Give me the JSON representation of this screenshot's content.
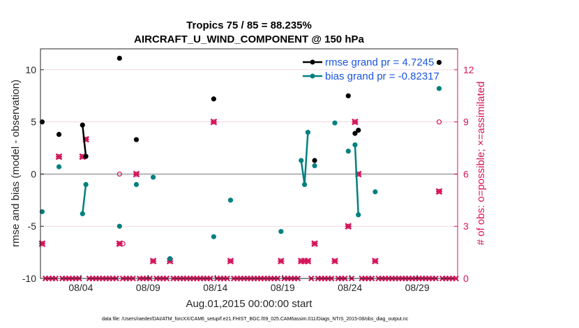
{
  "chart_data": {
    "type": "line",
    "title_line1": "Tropics 75 / 85 = 88.235%",
    "title_line2": "AIRCRAFT_U_WIND_COMPONENT @ 150 hPa",
    "xlabel": "Aug.01,2015 00:00:00 start",
    "ylabel": "rmse and bias (model - observation)",
    "y2label": "# of obs: o=possible; ×=assimilated",
    "xlim": [
      1,
      32
    ],
    "ylim": [
      -10,
      12
    ],
    "y2lim": [
      0,
      13.2
    ],
    "xticks": [
      4,
      9,
      14,
      19,
      24,
      29
    ],
    "xtick_labels": [
      "08/04",
      "08/09",
      "08/14",
      "08/19",
      "08/24",
      "08/29"
    ],
    "yticks": [
      -10,
      -5,
      0,
      5,
      10
    ],
    "ytick_labels": [
      "-10",
      "-5",
      "0",
      "5",
      "10"
    ],
    "y2ticks": [
      0,
      3,
      6,
      9,
      12
    ],
    "y2tick_labels": [
      "0",
      "3",
      "6",
      "9",
      "12"
    ],
    "reference_line": 0,
    "series": [
      {
        "name": "rmse grand pr = 4.7245",
        "color": "#000000",
        "axis": "left",
        "points": [
          [
            1.125,
            5.0
          ],
          [
            2.375,
            3.8
          ],
          [
            4.125,
            4.7
          ],
          [
            4.375,
            1.7
          ],
          [
            6.875,
            11.1
          ],
          [
            8.125,
            3.3
          ],
          [
            13.875,
            7.2
          ],
          [
            21.375,
            1.3
          ],
          [
            23.875,
            7.5
          ],
          [
            24.375,
            3.9
          ],
          [
            24.625,
            4.2
          ],
          [
            30.625,
            10.7
          ]
        ],
        "connected": [
          [
            2,
            3
          ],
          [
            9,
            10
          ]
        ]
      },
      {
        "name": "bias grand pr = -0.82317",
        "color": "#008080",
        "axis": "left",
        "points": [
          [
            1.125,
            -3.6
          ],
          [
            2.375,
            0.7
          ],
          [
            4.125,
            -3.8
          ],
          [
            4.375,
            -1.0
          ],
          [
            6.875,
            -5.0
          ],
          [
            8.125,
            -1.0
          ],
          [
            9.375,
            -0.3
          ],
          [
            10.625,
            -8.1
          ],
          [
            13.875,
            -6.0
          ],
          [
            15.125,
            -2.5
          ],
          [
            18.875,
            -5.5
          ],
          [
            20.375,
            1.3
          ],
          [
            20.625,
            -1.0
          ],
          [
            20.875,
            4.0
          ],
          [
            21.375,
            0.8
          ],
          [
            22.875,
            4.9
          ],
          [
            23.875,
            2.2
          ],
          [
            24.375,
            2.8
          ],
          [
            24.625,
            -3.9
          ],
          [
            25.875,
            -1.7
          ],
          [
            30.625,
            8.2
          ]
        ],
        "connected": [
          [
            2,
            3
          ],
          [
            11,
            12
          ],
          [
            12,
            13
          ],
          [
            17,
            18
          ]
        ]
      }
    ],
    "obs_possible": [
      [
        1.125,
        2
      ],
      [
        2.375,
        7
      ],
      [
        4.125,
        7
      ],
      [
        4.375,
        8
      ],
      [
        6.875,
        2
      ],
      [
        7.125,
        2
      ],
      [
        6.875,
        6
      ],
      [
        8.125,
        6
      ],
      [
        9.375,
        1
      ],
      [
        10.625,
        1
      ],
      [
        13.875,
        9
      ],
      [
        15.125,
        1
      ],
      [
        18.875,
        1
      ],
      [
        20.375,
        1
      ],
      [
        20.625,
        1
      ],
      [
        20.875,
        1
      ],
      [
        21.375,
        2
      ],
      [
        22.875,
        1
      ],
      [
        23.875,
        3
      ],
      [
        24.375,
        9
      ],
      [
        24.625,
        6
      ],
      [
        25.875,
        1
      ],
      [
        30.625,
        9
      ],
      [
        30.625,
        5
      ]
    ],
    "obs_assimilated": [
      [
        1.125,
        2
      ],
      [
        2.375,
        7
      ],
      [
        4.125,
        7
      ],
      [
        4.375,
        8
      ],
      [
        6.875,
        2
      ],
      [
        8.125,
        6
      ],
      [
        9.375,
        1
      ],
      [
        10.625,
        1
      ],
      [
        13.875,
        9
      ],
      [
        15.125,
        1
      ],
      [
        18.875,
        1
      ],
      [
        20.375,
        1
      ],
      [
        20.625,
        1
      ],
      [
        20.875,
        1
      ],
      [
        21.375,
        2
      ],
      [
        22.875,
        1
      ],
      [
        23.875,
        3
      ],
      [
        24.375,
        9
      ],
      [
        24.625,
        6
      ],
      [
        25.875,
        1
      ],
      [
        30.625,
        5
      ]
    ],
    "legend": {
      "placement": "top-right"
    }
  },
  "footer": "data file: /Users/raeder/DAI/ATM_forcXX/CAM6_setup/f.e21.FHIST_BGC.f09_025.CAM6assim.011/Diags_NTrS_2015-08/obs_diag_output.nc"
}
